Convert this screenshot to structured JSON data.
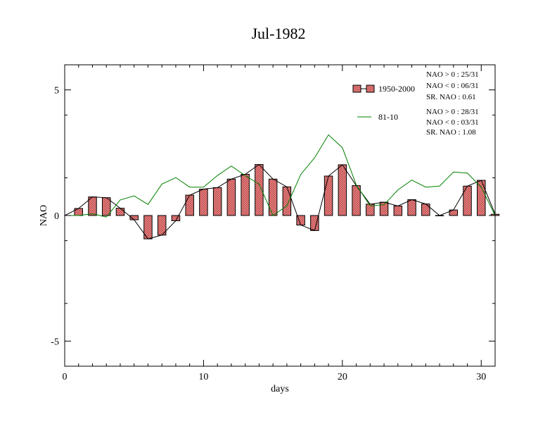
{
  "chart_data": {
    "type": "bar",
    "title": "Jul-1982",
    "xlabel": "days",
    "ylabel": "NAO",
    "xlim": [
      0,
      31
    ],
    "ylim": [
      -6,
      6
    ],
    "xticks": [
      0,
      10,
      20,
      30
    ],
    "xtick_labels": [
      "0",
      "10",
      "20",
      "30"
    ],
    "yticks": [
      -5,
      0,
      5
    ],
    "ytick_labels": [
      "-5",
      "0",
      "5"
    ],
    "grid": false,
    "legend_position": "top-right",
    "x": [
      1,
      2,
      3,
      4,
      5,
      6,
      7,
      8,
      9,
      10,
      11,
      12,
      13,
      14,
      15,
      16,
      17,
      18,
      19,
      20,
      21,
      22,
      23,
      24,
      25,
      26,
      27,
      28,
      29,
      30,
      31
    ],
    "series": [
      {
        "name": "1950-2000",
        "kind": "bar+line",
        "color": "#f08080",
        "values": [
          0.28,
          0.74,
          0.71,
          0.29,
          -0.17,
          -0.93,
          -0.78,
          -0.21,
          0.81,
          1.05,
          1.11,
          1.45,
          1.64,
          2.03,
          1.45,
          1.14,
          -0.38,
          -0.6,
          1.57,
          2.02,
          1.19,
          0.45,
          0.53,
          0.38,
          0.63,
          0.46,
          0.0,
          0.22,
          1.17,
          1.4,
          0.05
        ]
      },
      {
        "name": "81-10",
        "kind": "line",
        "color": "#008000",
        "values": [
          0.0,
          0.07,
          -0.06,
          0.62,
          0.78,
          0.44,
          1.25,
          1.51,
          1.13,
          1.13,
          1.59,
          1.97,
          1.59,
          1.25,
          0.0,
          0.38,
          1.63,
          2.3,
          3.21,
          2.7,
          1.22,
          0.38,
          0.43,
          1.02,
          1.41,
          1.13,
          1.17,
          1.73,
          1.69,
          1.13,
          0.0
        ]
      }
    ],
    "annotations": {
      "group1": [
        "NAO > 0 : 25/31",
        "NAO < 0 : 06/31",
        "SR. NAO :  0.61"
      ],
      "group2": [
        "NAO > 0 : 28/31",
        "NAO < 0 : 03/31",
        "SR. NAO :  1.08"
      ]
    }
  }
}
